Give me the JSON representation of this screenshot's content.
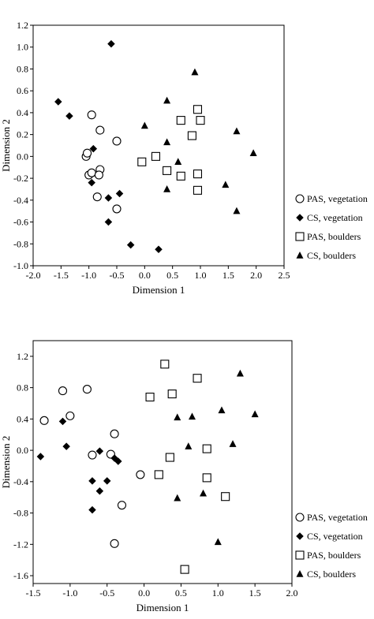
{
  "chart_data": [
    {
      "type": "scatter",
      "title": "",
      "xlabel": "Dimension 1",
      "ylabel": "Dimension 2",
      "xlim": [
        -2.0,
        2.5
      ],
      "ylim": [
        -1.0,
        1.2
      ],
      "xticks": [
        "-2.0",
        "-1.5",
        "-1.0",
        "-0.5",
        "0.0",
        "0.5",
        "1.0",
        "1.5",
        "2.0",
        "2.5"
      ],
      "yticks": [
        "-1.0",
        "-0.8",
        "-0.6",
        "-0.4",
        "-0.2",
        "0.0",
        "0.2",
        "0.4",
        "0.6",
        "0.8",
        "1.0",
        "1.2"
      ],
      "grid": false,
      "legend_position": "right",
      "series": [
        {
          "name": "PAS, vegetation",
          "marker": "circle-open",
          "points": [
            [
              -0.95,
              0.38
            ],
            [
              -0.8,
              0.24
            ],
            [
              -0.5,
              0.14
            ],
            [
              -1.05,
              0.0
            ],
            [
              -1.03,
              0.03
            ],
            [
              -0.8,
              -0.12
            ],
            [
              -1.0,
              -0.17
            ],
            [
              -0.95,
              -0.15
            ],
            [
              -0.82,
              -0.17
            ],
            [
              -0.85,
              -0.37
            ],
            [
              -0.5,
              -0.48
            ]
          ]
        },
        {
          "name": "CS, vegetation",
          "marker": "diamond-filled",
          "points": [
            [
              -0.6,
              1.03
            ],
            [
              -1.55,
              0.5
            ],
            [
              -1.35,
              0.37
            ],
            [
              -0.92,
              0.07
            ],
            [
              -0.95,
              -0.24
            ],
            [
              -0.45,
              -0.34
            ],
            [
              -0.65,
              -0.38
            ],
            [
              -0.65,
              -0.6
            ],
            [
              -0.25,
              -0.81
            ],
            [
              0.25,
              -0.85
            ]
          ]
        },
        {
          "name": "PAS, boulders",
          "marker": "square-open",
          "points": [
            [
              0.95,
              0.43
            ],
            [
              0.65,
              0.33
            ],
            [
              1.0,
              0.33
            ],
            [
              0.85,
              0.19
            ],
            [
              0.2,
              0.0
            ],
            [
              -0.05,
              -0.05
            ],
            [
              0.4,
              -0.13
            ],
            [
              0.65,
              -0.18
            ],
            [
              0.95,
              -0.16
            ],
            [
              0.95,
              -0.31
            ]
          ]
        },
        {
          "name": "CS, boulders",
          "marker": "triangle-filled",
          "points": [
            [
              0.9,
              0.77
            ],
            [
              0.4,
              0.51
            ],
            [
              0.0,
              0.28
            ],
            [
              1.65,
              0.23
            ],
            [
              0.4,
              0.13
            ],
            [
              1.95,
              0.03
            ],
            [
              0.6,
              -0.05
            ],
            [
              1.45,
              -0.26
            ],
            [
              0.4,
              -0.3
            ],
            [
              1.65,
              -0.5
            ]
          ]
        }
      ]
    },
    {
      "type": "scatter",
      "title": "",
      "xlabel": "Dimension 1",
      "ylabel": "Dimension 2",
      "xlim": [
        -1.5,
        2.0
      ],
      "ylim": [
        -1.7,
        1.4
      ],
      "xticks": [
        "-1.5",
        "-1.0",
        "-0.5",
        "0.0",
        "0.5",
        "1.0",
        "1.5",
        "2.0"
      ],
      "yticks": [
        "-1.6",
        "-1.2",
        "-0.8",
        "-0.4",
        "0.0",
        "0.4",
        "0.8",
        "1.2"
      ],
      "grid": false,
      "legend_position": "right",
      "series": [
        {
          "name": "PAS, vegetation",
          "marker": "circle-open",
          "points": [
            [
              -1.1,
              0.76
            ],
            [
              -0.77,
              0.78
            ],
            [
              -1.35,
              0.38
            ],
            [
              -1.0,
              0.44
            ],
            [
              -0.4,
              0.21
            ],
            [
              -0.7,
              -0.06
            ],
            [
              -0.45,
              -0.05
            ],
            [
              -0.05,
              -0.31
            ],
            [
              -0.3,
              -0.7
            ],
            [
              -0.4,
              -1.19
            ]
          ]
        },
        {
          "name": "CS, vegetation",
          "marker": "diamond-filled",
          "points": [
            [
              -1.1,
              0.37
            ],
            [
              -1.05,
              0.05
            ],
            [
              -1.4,
              -0.08
            ],
            [
              -0.6,
              -0.01
            ],
            [
              -0.4,
              -0.1
            ],
            [
              -0.35,
              -0.14
            ],
            [
              -0.7,
              -0.39
            ],
            [
              -0.5,
              -0.39
            ],
            [
              -0.6,
              -0.52
            ],
            [
              -0.7,
              -0.76
            ]
          ]
        },
        {
          "name": "PAS, boulders",
          "marker": "square-open",
          "points": [
            [
              0.28,
              1.1
            ],
            [
              0.72,
              0.92
            ],
            [
              0.38,
              0.72
            ],
            [
              0.08,
              0.68
            ],
            [
              0.35,
              -0.09
            ],
            [
              0.85,
              0.02
            ],
            [
              0.2,
              -0.31
            ],
            [
              0.85,
              -0.35
            ],
            [
              1.1,
              -0.59
            ],
            [
              0.55,
              -1.52
            ]
          ]
        },
        {
          "name": "CS, boulders",
          "marker": "triangle-filled",
          "points": [
            [
              1.3,
              0.98
            ],
            [
              1.05,
              0.51
            ],
            [
              1.5,
              0.46
            ],
            [
              0.45,
              0.42
            ],
            [
              0.65,
              0.43
            ],
            [
              0.6,
              0.05
            ],
            [
              1.2,
              0.08
            ],
            [
              0.8,
              -0.55
            ],
            [
              0.45,
              -0.61
            ],
            [
              1.0,
              -1.17
            ]
          ]
        }
      ]
    }
  ]
}
